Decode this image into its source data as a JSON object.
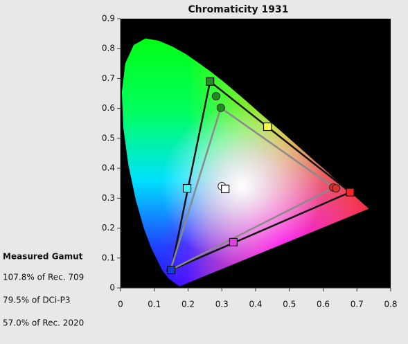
{
  "chart_data": {
    "type": "scatter",
    "title": "Chromaticity 1931",
    "xlim": [
      0,
      0.8
    ],
    "ylim": [
      0,
      0.9
    ],
    "xticks": [
      0,
      0.1,
      0.2,
      0.3,
      0.4,
      0.5,
      0.6,
      0.7,
      0.8
    ],
    "yticks": [
      0,
      0.1,
      0.2,
      0.3,
      0.4,
      0.5,
      0.6,
      0.7,
      0.8,
      0.9
    ],
    "background": "#000000",
    "series": [
      {
        "marker": "polygon",
        "color": "#111111",
        "x": [
          0.265,
          0.68,
          0.15
        ],
        "values": [
          0.69,
          0.32,
          0.06
        ]
      },
      {
        "marker": "polygon",
        "color": "#8a8a8a",
        "x": [
          0.297,
          0.632,
          0.148
        ],
        "values": [
          0.602,
          0.336,
          0.06
        ]
      },
      {
        "marker": "circle",
        "x": [
          0.283,
          0.297,
          0.63,
          0.638,
          0.148,
          0.3
        ],
        "values": [
          0.641,
          0.602,
          0.336,
          0.333,
          0.06,
          0.34
        ],
        "colors": [
          "#1f8f1f",
          "#1f8f1f",
          "#e03030",
          "#e03030",
          "#1838c8",
          "#ffffff"
        ]
      },
      {
        "marker": "square",
        "x": [
          0.265,
          0.68,
          0.15,
          0.197,
          0.435,
          0.334,
          0.31
        ],
        "values": [
          0.69,
          0.32,
          0.06,
          0.333,
          0.539,
          0.153,
          0.331
        ],
        "colors": [
          "#228b22",
          "#ff2020",
          "#1838d8",
          "#40ffff",
          "#ffff40",
          "#e040e0",
          "#ffffff"
        ]
      }
    ],
    "annotations": {
      "heading": "Measured Gamut",
      "lines": [
        "107.8% of Rec. 709",
        "79.5% of DCi-P3",
        "57.0% of Rec. 2020"
      ]
    }
  }
}
